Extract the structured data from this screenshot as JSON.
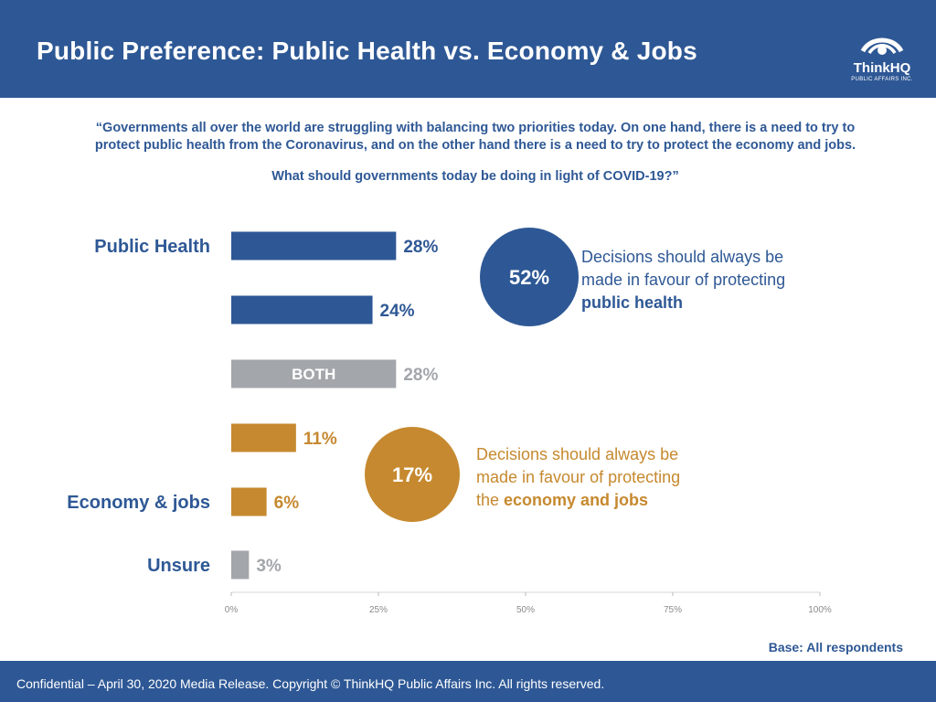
{
  "header": {
    "title": "Public Preference: Public Health vs. Economy & Jobs",
    "logo_name": "ThinkHQ",
    "logo_sub": "PUBLIC AFFAIRS INC."
  },
  "question": {
    "line1": "“Governments all over the world are struggling with balancing two priorities today. On one hand, there is a need to try to protect public health from the Coronavirus, and on the other hand there is a need to try to protect the economy and jobs.",
    "line2": "What should governments today be doing in light of COVID-19?”"
  },
  "callouts": {
    "public_health": {
      "value": "52%",
      "text_1": "Decisions should always be",
      "text_2": "made in favour of protecting",
      "text_3": "public health"
    },
    "economy": {
      "value": "17%",
      "text_1": "Decisions should always be",
      "text_2": "made in favour of protecting",
      "text_3a": "the ",
      "text_3b": "economy and jobs"
    }
  },
  "chart_data": {
    "type": "bar",
    "orientation": "horizontal",
    "categories": [
      "Public Health",
      "",
      "BOTH",
      "",
      "Economy & jobs",
      "Unsure"
    ],
    "values": [
      28,
      24,
      28,
      11,
      6,
      3
    ],
    "value_labels": [
      "28%",
      "24%",
      "28%",
      "11%",
      "6%",
      "3%"
    ],
    "bar_labels": [
      "",
      "",
      "BOTH",
      "",
      "",
      ""
    ],
    "colors": [
      "#2e5895",
      "#2e5895",
      "#a3a6aa",
      "#c6892f",
      "#c6892f",
      "#a3a6aa"
    ],
    "xlim": [
      0,
      100
    ],
    "xticks": [
      "0%",
      "25%",
      "50%",
      "75%",
      "100%"
    ],
    "xtick_values": [
      0,
      25,
      50,
      75,
      100
    ],
    "grid": true
  },
  "base_note": "Base: All respondents",
  "footer": "Confidential – April 30, 2020 Media Release. Copyright © ThinkHQ Public Affairs Inc. All rights reserved.",
  "colors": {
    "brand_blue": "#2e5895",
    "orange": "#c6892f",
    "grey": "#a3a6aa"
  }
}
